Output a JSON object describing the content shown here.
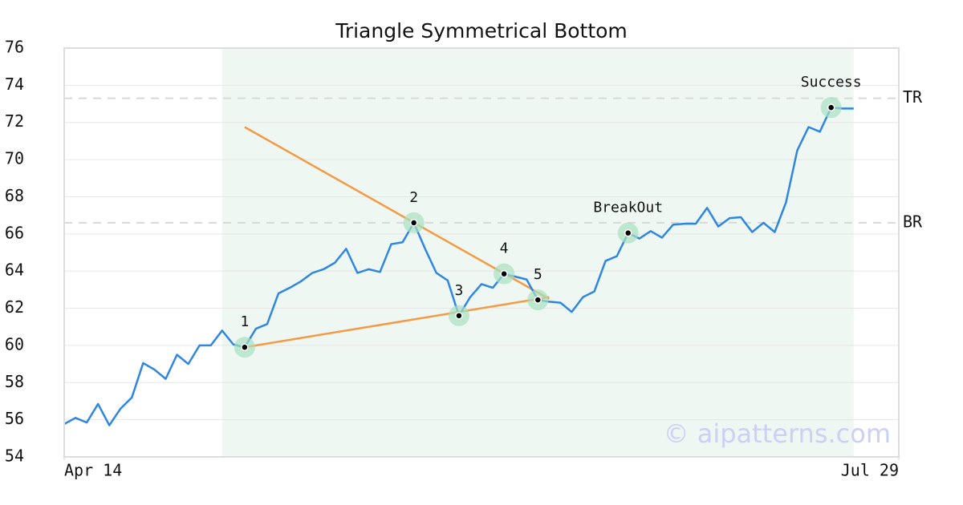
{
  "chart_data": {
    "type": "line",
    "title": "Triangle Symmetrical Bottom",
    "x": [
      0,
      1,
      2,
      3,
      4,
      5,
      6,
      7,
      8,
      9,
      10,
      11,
      12,
      13,
      14,
      15,
      16,
      17,
      18,
      19,
      20,
      21,
      22,
      23,
      24,
      25,
      26,
      27,
      28,
      29,
      30,
      31,
      32,
      33,
      34,
      35,
      36,
      37,
      38,
      39,
      40,
      41,
      42,
      43,
      44,
      45,
      46,
      47,
      48,
      49,
      50,
      51,
      52,
      53,
      54,
      55,
      56,
      57,
      58,
      59,
      60,
      61,
      62,
      63,
      64,
      65,
      66,
      67,
      68,
      69,
      70
    ],
    "values": [
      55.77,
      56.1,
      55.85,
      56.85,
      55.7,
      56.6,
      57.2,
      59.05,
      58.7,
      58.2,
      59.5,
      59.0,
      60.0,
      60.0,
      60.8,
      60.05,
      59.9,
      60.9,
      61.15,
      62.8,
      63.1,
      63.45,
      63.9,
      64.1,
      64.45,
      65.2,
      63.9,
      64.1,
      63.95,
      65.45,
      65.55,
      66.6,
      65.2,
      63.9,
      63.5,
      61.6,
      62.6,
      63.3,
      63.1,
      63.85,
      63.7,
      63.55,
      62.45,
      62.35,
      62.3,
      61.8,
      62.6,
      62.9,
      64.55,
      64.8,
      66.05,
      65.75,
      66.15,
      65.8,
      66.5,
      66.55,
      66.55,
      67.4,
      66.4,
      66.85,
      66.9,
      66.1,
      66.6,
      66.1,
      67.7,
      70.5,
      71.75,
      71.5,
      72.8,
      72.75,
      72.75
    ],
    "color": "#2f86e0",
    "xlim": [
      0,
      74
    ],
    "xticks": [
      {
        "value": 0,
        "label": "Apr 14"
      },
      {
        "value": 74,
        "label": "Jul 29"
      }
    ],
    "ylim": [
      54,
      76
    ],
    "yticks": [
      54,
      56,
      58,
      60,
      62,
      64,
      66,
      68,
      70,
      72,
      74,
      76
    ],
    "grid": true,
    "highlight_range": [
      14,
      70
    ],
    "highlight_color": "#eef7f2",
    "hlines": [
      {
        "value": 73.3,
        "label": "TR"
      },
      {
        "value": 66.6,
        "label": "BR"
      }
    ],
    "trendlines": [
      {
        "x": [
          16,
          43
        ],
        "values": [
          71.75,
          62.5
        ],
        "color": "#f59a44"
      },
      {
        "x": [
          16,
          43
        ],
        "values": [
          59.9,
          62.6
        ],
        "color": "#f59a44"
      }
    ],
    "markers": [
      {
        "x": 16,
        "label": "1"
      },
      {
        "x": 31,
        "label": "2"
      },
      {
        "x": 35,
        "label": "3"
      },
      {
        "x": 39,
        "label": "4"
      },
      {
        "x": 42,
        "label": "5"
      },
      {
        "x": 50,
        "label": "BreakOut"
      },
      {
        "x": 68,
        "label": "Success"
      }
    ],
    "watermark": "© aipatterns.com"
  }
}
